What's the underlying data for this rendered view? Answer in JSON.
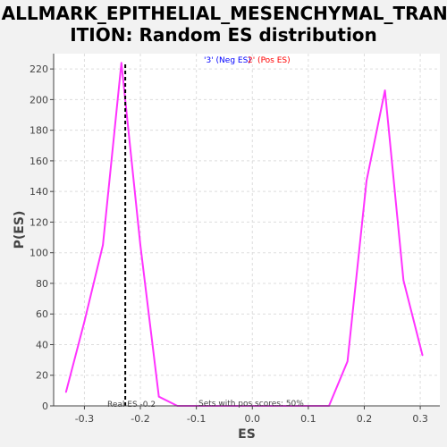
{
  "chart_data": {
    "type": "line",
    "title_line1": "HALLMARK_EPITHELIAL_MESENCHYMAL_TRANS",
    "title_line2": "ITION: Random ES distribution",
    "xlabel": "ES",
    "ylabel": "P(ES)",
    "xlim": [
      -0.355,
      0.335
    ],
    "ylim": [
      0,
      230
    ],
    "x_ticks": [
      -0.3,
      -0.2,
      -0.1,
      0.0,
      0.1,
      0.2,
      0.3
    ],
    "x_tick_labels": [
      "-0.3",
      "-0.2",
      "-0.1",
      "0.0",
      "0.1",
      "0.2",
      "0.3"
    ],
    "y_ticks": [
      0,
      20,
      40,
      60,
      80,
      100,
      120,
      140,
      160,
      180,
      200,
      220
    ],
    "y_tick_labels": [
      "0",
      "20",
      "40",
      "60",
      "80",
      "100",
      "120",
      "140",
      "160",
      "180",
      "200",
      "220"
    ],
    "grid": true,
    "series": [
      {
        "color": "#ff33ff",
        "x": [
          -0.333,
          -0.3,
          -0.267,
          -0.234,
          -0.2,
          -0.167,
          -0.134,
          -0.1,
          -0.067,
          -0.033,
          0.0,
          0.033,
          0.067,
          0.1,
          0.137,
          0.17,
          0.204,
          0.237,
          0.27,
          0.304
        ],
        "y": [
          9,
          55,
          105,
          224,
          105,
          6,
          0,
          0,
          0,
          0,
          0,
          0,
          0,
          0,
          0,
          29,
          147,
          206,
          82,
          33
        ]
      }
    ],
    "real_es": -0.227,
    "real_es_label": "Real ES -0.2",
    "annotation": "Sets with pos scores: 50%",
    "legend": {
      "neg": {
        "text": "'3' (Neg ES)",
        "color": "#0000ff"
      },
      "pos": {
        "text": "2' (Pos ES)",
        "color": "#ff0000"
      }
    },
    "colors": {
      "background": "#f2f2f2",
      "plot_background": "#ffffff",
      "grid": "#dddddd",
      "axis": "#444444"
    }
  }
}
